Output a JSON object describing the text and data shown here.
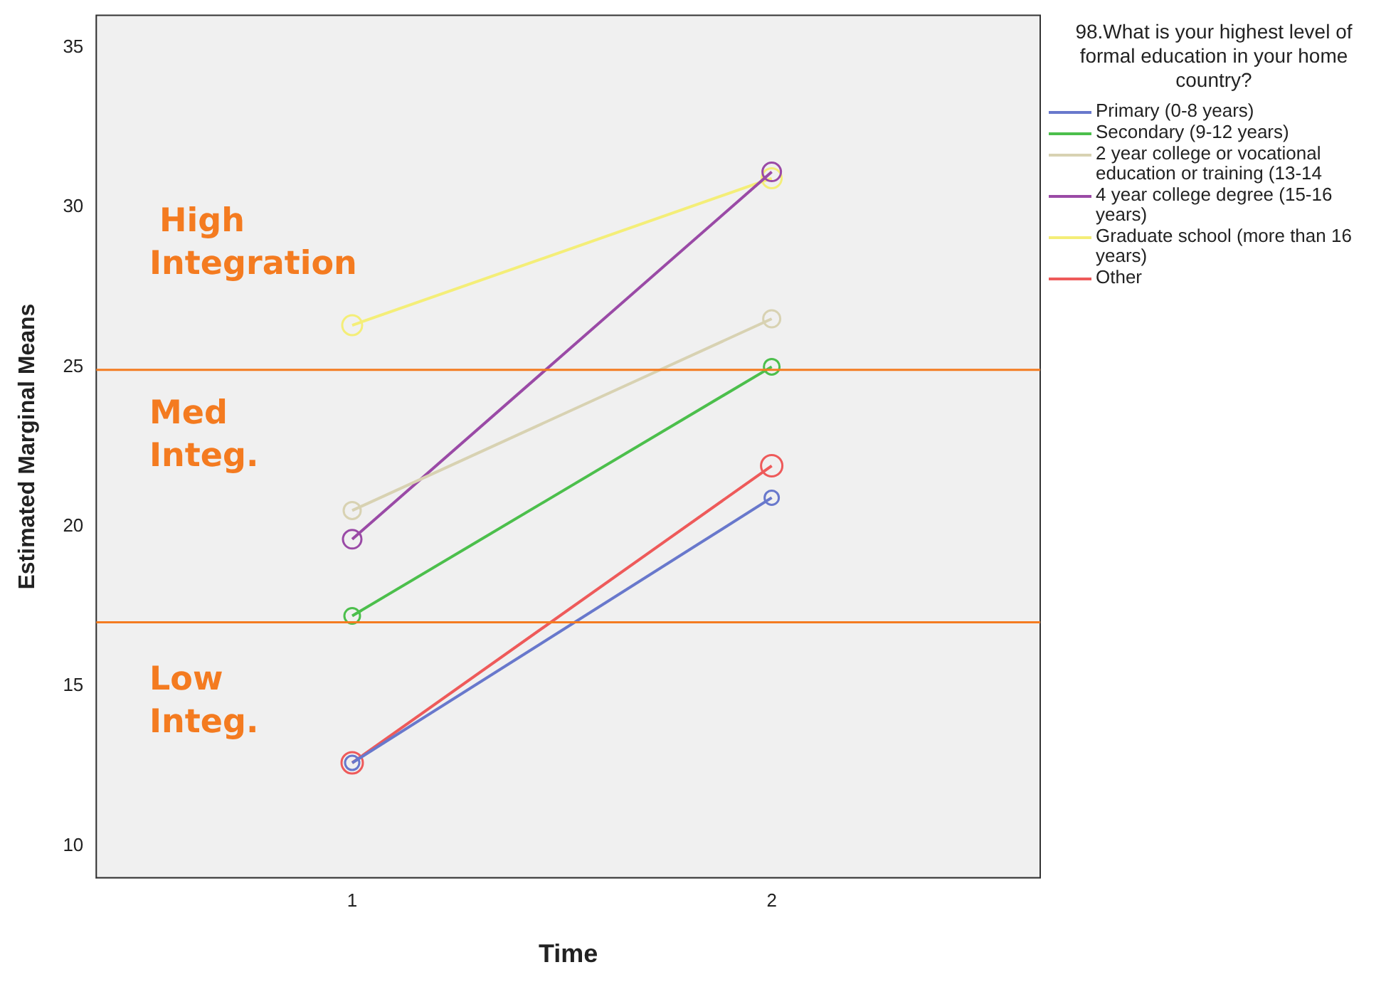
{
  "chart_data": {
    "type": "line",
    "xlabel": "Time",
    "ylabel": "Estimated Marginal Means",
    "legend_title": "98.What is your highest level of formal education in your home country?",
    "x": [
      1,
      2
    ],
    "xlim": [
      0.39,
      2.64
    ],
    "xticks": [
      1,
      2
    ],
    "ylim": [
      9,
      36
    ],
    "yticks": [
      10,
      15,
      20,
      25,
      30,
      35
    ],
    "series": [
      {
        "name": "Primary (0-8 years)",
        "color": "#6878cc",
        "values": [
          12.6,
          20.9
        ]
      },
      {
        "name": "Secondary (9-12 years)",
        "color": "#4cbf4c",
        "values": [
          17.2,
          25.0
        ]
      },
      {
        "name": "2 year college or vocational education or training (13-14",
        "color": "#d8d2b2",
        "values": [
          20.5,
          26.5
        ]
      },
      {
        "name": "4 year college degree (15-16 years)",
        "color": "#9a4aa6",
        "values": [
          19.6,
          31.1
        ]
      },
      {
        "name": "Graduate school (more than 16 years)",
        "color": "#f4ee78",
        "values": [
          26.3,
          30.9
        ]
      },
      {
        "name": "Other",
        "color": "#ee5a5a",
        "values": [
          12.6,
          21.9
        ]
      }
    ],
    "ref_lines": [
      {
        "axis": "y",
        "value": 24.9,
        "color": "#f47b20"
      },
      {
        "axis": "y",
        "value": 17.0,
        "color": "#f47b20"
      }
    ],
    "annotations": [
      "High Integration",
      "Med Integ.",
      "Low Integ."
    ],
    "marker": "circle",
    "grid": false,
    "legend": "right"
  }
}
